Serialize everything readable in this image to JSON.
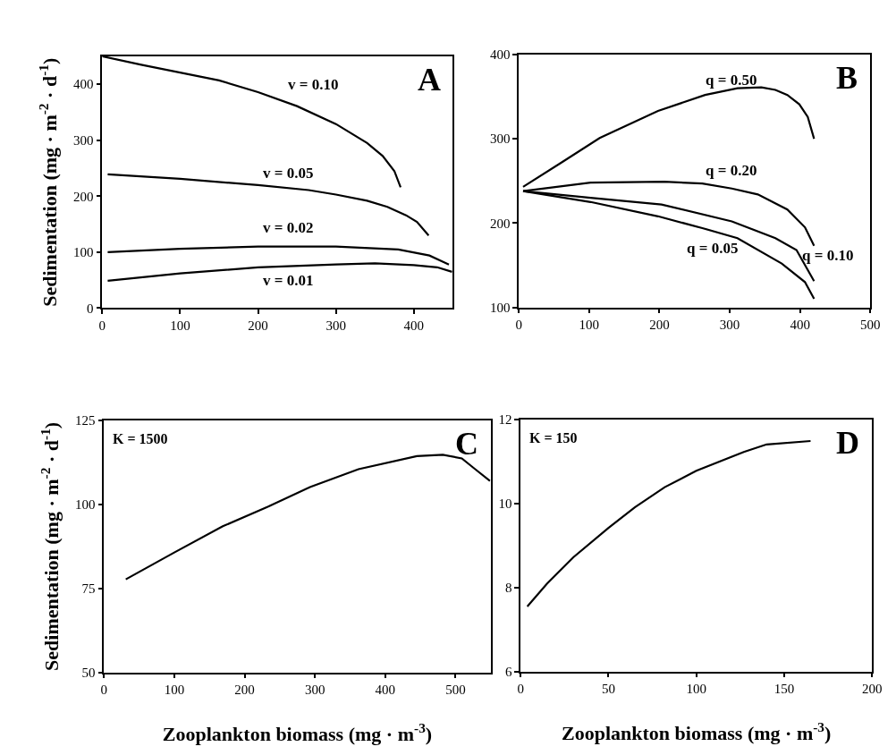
{
  "chart_data": [
    {
      "type": "line",
      "ylabel": "Sedimentation (mg · m$^{-2}$ · d$^{-1}$)",
      "xlim": [
        0,
        450
      ],
      "ylim": [
        0,
        450
      ],
      "xticks": [
        0,
        100,
        200,
        300,
        400
      ],
      "yticks": [
        0,
        100,
        200,
        300,
        400
      ],
      "legend": false,
      "marker": "none",
      "line_style": "solid",
      "series": [
        {
          "name": "v = 0.10",
          "color": "#000000",
          "x": [
            0,
            50,
            100,
            150,
            200,
            250,
            300,
            340,
            360,
            375,
            383
          ],
          "values": [
            450,
            435,
            421,
            407,
            386,
            361,
            329,
            295,
            272,
            245,
            216
          ]
        },
        {
          "name": "v = 0.05",
          "color": "#000000",
          "x": [
            7,
            100,
            200,
            265,
            300,
            340,
            366,
            390,
            404,
            419
          ],
          "values": [
            239,
            231,
            220,
            211,
            203,
            192,
            181,
            166,
            154,
            130
          ]
        },
        {
          "name": "v = 0.02",
          "color": "#000000",
          "x": [
            7,
            100,
            200,
            300,
            380,
            420,
            437,
            445
          ],
          "values": [
            100,
            106,
            110,
            110,
            105,
            94,
            83,
            78
          ]
        },
        {
          "name": "v = 0.01",
          "color": "#000000",
          "x": [
            7,
            100,
            200,
            300,
            350,
            400,
            430,
            449
          ],
          "values": [
            49,
            62,
            73,
            78,
            80,
            77,
            73,
            65
          ]
        }
      ],
      "annotations": [
        "A"
      ]
    },
    {
      "type": "line",
      "xlim": [
        0,
        500
      ],
      "ylim": [
        100,
        400
      ],
      "xticks": [
        0,
        100,
        200,
        300,
        400,
        500
      ],
      "yticks": [
        100,
        200,
        300,
        400
      ],
      "legend": false,
      "marker": "none",
      "line_style": "solid",
      "series": [
        {
          "name": "q = 0.50",
          "color": "#000000",
          "x": [
            6,
            61,
            115,
            198,
            265,
            311,
            345,
            365,
            382,
            399,
            411,
            420
          ],
          "values": [
            243,
            272,
            301,
            333,
            352,
            360,
            361,
            358,
            352,
            341,
            326,
            300
          ]
        },
        {
          "name": "q = 0.20",
          "color": "#000000",
          "x": [
            6,
            102,
            207,
            261,
            303,
            340,
            382,
            407,
            420
          ],
          "values": [
            238,
            248,
            249,
            247,
            241,
            234,
            216,
            195,
            173
          ]
        },
        {
          "name": "q = 0.10",
          "color": "#000000",
          "x": [
            6,
            102,
            203,
            303,
            365,
            395,
            420
          ],
          "values": [
            238,
            230,
            222,
            202,
            182,
            168,
            131
          ]
        },
        {
          "name": "q = 0.05",
          "color": "#000000",
          "x": [
            6,
            102,
            198,
            261,
            311,
            374,
            407,
            420
          ],
          "values": [
            238,
            225,
            208,
            194,
            182,
            152,
            130,
            110
          ]
        }
      ],
      "annotations": [
        "B"
      ]
    },
    {
      "type": "line",
      "xlabel": "Zooplankton biomass (mg · m$^{-3}$)",
      "ylabel": "Sedimentation (mg · m$^{-2}$ · d$^{-1}$)",
      "xlim": [
        0,
        550
      ],
      "ylim": [
        50,
        125
      ],
      "xticks": [
        0,
        100,
        200,
        300,
        400,
        500
      ],
      "yticks": [
        50,
        75,
        100,
        125
      ],
      "legend": false,
      "marker": "none",
      "line_style": "solid",
      "series": [
        {
          "color": "#000000",
          "x": [
            31,
            100,
            169,
            233,
            293,
            362,
            445,
            482,
            509,
            528,
            549
          ],
          "values": [
            77.7,
            85.7,
            93.5,
            99.3,
            105.2,
            110.5,
            114.4,
            114.8,
            113.7,
            110.5,
            107
          ]
        }
      ],
      "annotations": [
        "K = 1500",
        "C"
      ]
    },
    {
      "type": "line",
      "xlabel": "Zooplankton biomass (mg · m$^{-3}$)",
      "xlim": [
        0,
        200
      ],
      "ylim": [
        6,
        12
      ],
      "xticks": [
        0,
        50,
        100,
        150,
        200
      ],
      "yticks": [
        6,
        8,
        10,
        12
      ],
      "legend": false,
      "marker": "none",
      "line_style": "solid",
      "series": [
        {
          "color": "#000000",
          "x": [
            3.8,
            15,
            30,
            50,
            65,
            82,
            100,
            127,
            140,
            165
          ],
          "values": [
            7.55,
            8.09,
            8.72,
            9.42,
            9.91,
            10.39,
            10.78,
            11.23,
            11.41,
            11.49
          ]
        }
      ],
      "annotations": [
        "K = 150",
        "D"
      ]
    }
  ]
}
